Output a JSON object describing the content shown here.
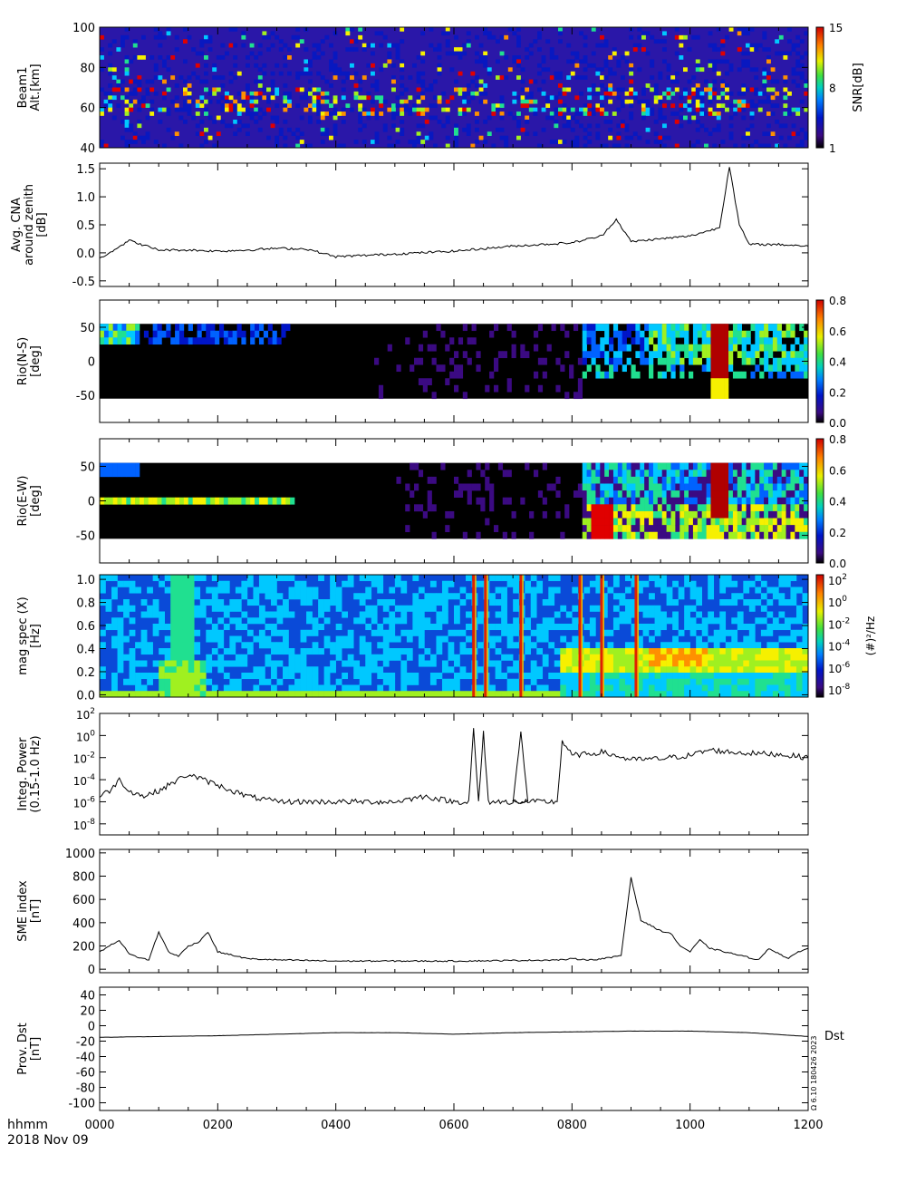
{
  "colors": {
    "frame": "#000000",
    "line": "#000000",
    "background": "#ffffff",
    "rainbow": [
      "#000000",
      "#3b0a82",
      "#0015c8",
      "#0062ff",
      "#00c8ff",
      "#20e090",
      "#a0f020",
      "#f6f000",
      "#ff9000",
      "#e00000",
      "#b00000"
    ]
  },
  "footer": {
    "time_label": "hhmm",
    "date_label": "2018 Nov 09",
    "x_ticks": [
      "0000",
      "0200",
      "0400",
      "0600",
      "0800",
      "1000",
      "1200"
    ],
    "stamp": "Ω 6.10 180426 2023"
  },
  "chart_data": [
    {
      "type": "heatmap",
      "ylabel": [
        "Beam1",
        "Alt.[km]"
      ],
      "yrange": [
        40,
        100
      ],
      "yticks": [
        "100",
        "80",
        "60",
        "40"
      ],
      "colorbar": {
        "title": "SNR[dB]",
        "ticks": [
          "15",
          "8",
          "1"
        ],
        "range": [
          1,
          15
        ]
      },
      "features": "scattered echoes, densest band 55-70 km"
    },
    {
      "type": "line",
      "ylabel": [
        "Avg. CNA",
        "around zenith",
        "[dB]"
      ],
      "yrange": [
        -0.6,
        1.6
      ],
      "yticks": [
        "1.5",
        "1.0",
        "0.5",
        "0.0",
        "-0.5"
      ],
      "x": [
        "0000",
        "0030",
        "0100",
        "0130",
        "0200",
        "0230",
        "0300",
        "0330",
        "0400",
        "0500",
        "0600",
        "0700",
        "0800",
        "0830",
        "0845",
        "0900",
        "1000",
        "1030",
        "1040",
        "1050",
        "1100",
        "1130",
        "1200"
      ],
      "values": [
        -0.1,
        0.22,
        0.05,
        0.05,
        0.03,
        0.05,
        0.08,
        0.07,
        -0.07,
        -0.02,
        0.03,
        0.12,
        0.18,
        0.3,
        0.6,
        0.2,
        0.3,
        0.45,
        1.55,
        0.5,
        0.15,
        0.15,
        0.12
      ]
    },
    {
      "type": "heatmap",
      "ylabel": [
        "Rio(N-S)",
        "[deg]"
      ],
      "yrange": [
        -90,
        90
      ],
      "yticks": [
        "50",
        "0",
        "-50"
      ],
      "colorbar": {
        "title": "",
        "ticks": [
          "0.8",
          "0.6",
          "0.4",
          "0.2",
          "0.0"
        ],
        "range": [
          0,
          0.8
        ]
      }
    },
    {
      "type": "heatmap",
      "ylabel": [
        "Rio(E-W)",
        "[deg]"
      ],
      "yrange": [
        -90,
        90
      ],
      "yticks": [
        "50",
        "0",
        "-50"
      ],
      "colorbar": {
        "title": "",
        "ticks": [
          "0.8",
          "0.6",
          "0.4",
          "0.2",
          "0.0"
        ],
        "range": [
          0,
          0.8
        ]
      }
    },
    {
      "type": "heatmap",
      "ylabel": [
        "mag spec (X)",
        "[Hz]"
      ],
      "yrange": [
        0,
        1.0
      ],
      "yticks": [
        "1.0",
        "0.8",
        "0.6",
        "0.4",
        "0.2",
        "0.0"
      ],
      "colorbar": {
        "title": "(#)²/Hz",
        "ticks": [
          {
            "base": "10",
            "exp": "2"
          },
          {
            "base": "10",
            "exp": "0"
          },
          {
            "base": "10",
            "exp": "-2"
          },
          {
            "base": "10",
            "exp": "-4"
          },
          {
            "base": "10",
            "exp": "-6"
          },
          {
            "base": "10",
            "exp": "-8"
          }
        ]
      },
      "spikes": [
        "0620",
        "0632",
        "0668",
        "0790",
        "0808",
        "0905"
      ]
    },
    {
      "type": "line",
      "yscale": "log",
      "ylabel": [
        "Integ. Power",
        "(0.15-1.0 Hz)"
      ],
      "yrange_exp": [
        -9,
        2
      ],
      "yticks": [
        {
          "base": "10",
          "exp": "2"
        },
        {
          "base": "10",
          "exp": "0"
        },
        {
          "base": "10",
          "exp": "-2"
        },
        {
          "base": "10",
          "exp": "-4"
        },
        {
          "base": "10",
          "exp": "-6"
        },
        {
          "base": "10",
          "exp": "-8"
        }
      ],
      "x": [
        "0000",
        "0010",
        "0020",
        "0030",
        "0045",
        "0100",
        "0120",
        "0130",
        "0200",
        "0230",
        "0300",
        "0400",
        "0500",
        "0530",
        "0600",
        "0615",
        "0620",
        "0625",
        "0630",
        "0635",
        "0640",
        "0660",
        "0668",
        "0675",
        "0700",
        "0745",
        "0750",
        "0800",
        "0815",
        "0830",
        "0900",
        "0930",
        "1000",
        "1020",
        "1040",
        "1100",
        "1130",
        "1200"
      ],
      "log10_values": [
        -5.5,
        -5.0,
        -4.0,
        -5.0,
        -5.5,
        -5.0,
        -4.0,
        -3.5,
        -4.5,
        -5.5,
        -6.0,
        -6.0,
        -6.0,
        -5.5,
        -6.0,
        -6.0,
        0.5,
        -6.0,
        0.2,
        -6.0,
        -6.0,
        -6.0,
        0.2,
        -6.0,
        -6.0,
        -6.0,
        -0.5,
        -1.8,
        -1.7,
        -1.5,
        -2.2,
        -2.1,
        -1.8,
        -1.3,
        -1.5,
        -1.6,
        -1.7,
        -2.0
      ]
    },
    {
      "type": "line",
      "ylabel": [
        "SME index",
        "[nT]"
      ],
      "yrange": [
        -30,
        1030
      ],
      "yticks": [
        "1000",
        "800",
        "600",
        "400",
        "200",
        "0"
      ],
      "x": [
        "0000",
        "0010",
        "0020",
        "0030",
        "0040",
        "0050",
        "0100",
        "0110",
        "0120",
        "0130",
        "0140",
        "0150",
        "0200",
        "0230",
        "0300",
        "0400",
        "0500",
        "0600",
        "0700",
        "0750",
        "0800",
        "0820",
        "0840",
        "0850",
        "0900",
        "0910",
        "0930",
        "0940",
        "0950",
        "1000",
        "1010",
        "1020",
        "1040",
        "1100",
        "1110",
        "1120",
        "1140",
        "1150",
        "1200"
      ],
      "values": [
        150,
        200,
        250,
        130,
        100,
        80,
        320,
        150,
        110,
        200,
        230,
        320,
        150,
        90,
        80,
        70,
        70,
        70,
        75,
        80,
        90,
        80,
        100,
        120,
        790,
        420,
        330,
        310,
        200,
        150,
        250,
        180,
        140,
        100,
        80,
        180,
        90,
        150,
        180
      ]
    },
    {
      "type": "line",
      "ylabel": [
        "Prov. Dst",
        "[nT]"
      ],
      "yrange": [
        -110,
        50
      ],
      "yticks": [
        "40",
        "20",
        "0",
        "-20",
        "-40",
        "-60",
        "-80",
        "-100"
      ],
      "x": [
        "0000",
        "0100",
        "0200",
        "0300",
        "0400",
        "0500",
        "0600",
        "0700",
        "0800",
        "0900",
        "1000",
        "1100",
        "1200"
      ],
      "values": [
        -15,
        -14,
        -13,
        -11,
        -9,
        -9,
        -11,
        -9,
        -8,
        -7,
        -7,
        -9,
        -14
      ],
      "side_label": "Dst"
    }
  ]
}
